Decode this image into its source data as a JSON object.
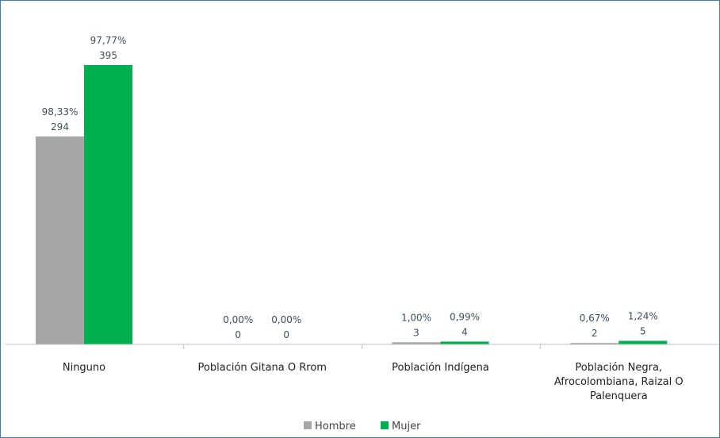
{
  "chart_data": {
    "type": "bar",
    "categories": [
      [
        "Ninguno"
      ],
      [
        "Población Gitana O Rrom"
      ],
      [
        "Población Indígena"
      ],
      [
        "Población Negra,",
        "Afrocolombiana, Raizal O",
        "Palenquera"
      ]
    ],
    "series": [
      {
        "name": "Hombre",
        "color": "#a6a6a6",
        "values": [
          294,
          0,
          3,
          2
        ],
        "percent_labels": [
          "98,33%",
          "0,00%",
          "1,00%",
          "0,67%"
        ]
      },
      {
        "name": "Mujer",
        "color": "#00b050",
        "values": [
          395,
          0,
          4,
          5
        ],
        "percent_labels": [
          "97,77%",
          "0,00%",
          "0,99%",
          "1,24%"
        ]
      }
    ],
    "ylim": [
      0,
      440
    ],
    "grid": false,
    "legend_position": "bottom"
  }
}
